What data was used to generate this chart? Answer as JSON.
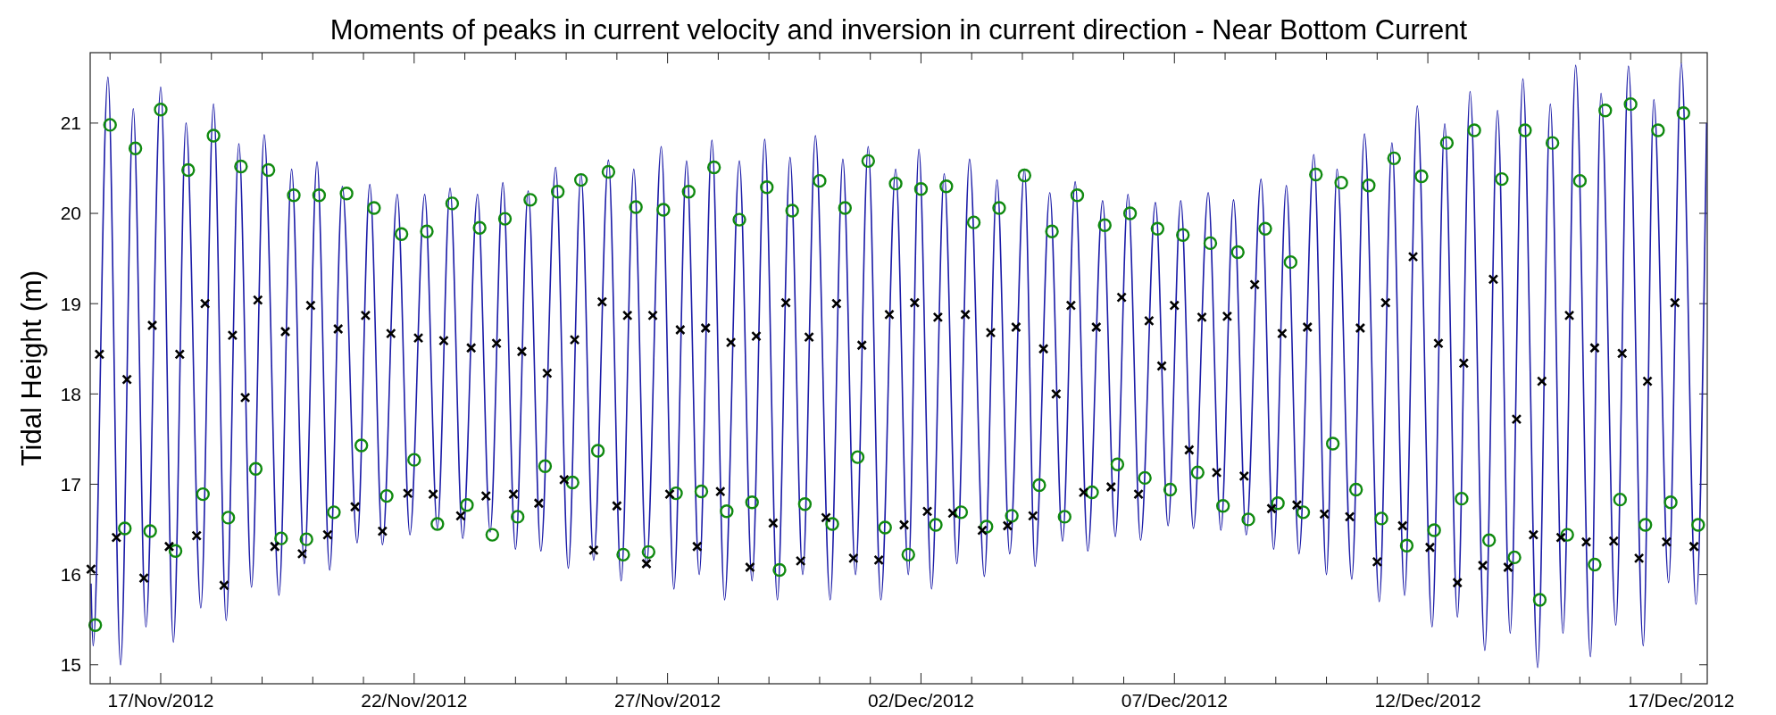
{
  "chart_data": {
    "type": "line",
    "title": "Moments of peaks in current velocity and inversion in current direction - Near Bottom Current",
    "ylabel": "Tidal Height (m)",
    "xlim": [
      "2012-11-15T14:36",
      "2012-12-17T12:18"
    ],
    "ylim": [
      14.79,
      21.78
    ],
    "yticks": [
      15,
      16,
      17,
      18,
      19,
      20,
      21
    ],
    "xticks": [
      {
        "value": "2012-11-16",
        "label": null
      },
      {
        "value": "2012-11-17",
        "label": "17/Nov/2012"
      },
      {
        "value": "2012-11-18",
        "label": null
      },
      {
        "value": "2012-11-19",
        "label": null
      },
      {
        "value": "2012-11-20",
        "label": null
      },
      {
        "value": "2012-11-21",
        "label": null
      },
      {
        "value": "2012-11-22",
        "label": "22/Nov/2012"
      },
      {
        "value": "2012-11-23",
        "label": null
      },
      {
        "value": "2012-11-24",
        "label": null
      },
      {
        "value": "2012-11-25",
        "label": null
      },
      {
        "value": "2012-11-26",
        "label": null
      },
      {
        "value": "2012-11-27",
        "label": "27/Nov/2012"
      },
      {
        "value": "2012-11-28",
        "label": null
      },
      {
        "value": "2012-11-29",
        "label": null
      },
      {
        "value": "2012-11-30",
        "label": null
      },
      {
        "value": "2012-12-01",
        "label": null
      },
      {
        "value": "2012-12-02",
        "label": "02/Dec/2012"
      },
      {
        "value": "2012-12-03",
        "label": null
      },
      {
        "value": "2012-12-04",
        "label": null
      },
      {
        "value": "2012-12-05",
        "label": null
      },
      {
        "value": "2012-12-06",
        "label": null
      },
      {
        "value": "2012-12-07",
        "label": "07/Dec/2012"
      },
      {
        "value": "2012-12-08",
        "label": null
      },
      {
        "value": "2012-12-09",
        "label": null
      },
      {
        "value": "2012-12-10",
        "label": null
      },
      {
        "value": "2012-12-11",
        "label": null
      },
      {
        "value": "2012-12-12",
        "label": "12/Dec/2012"
      },
      {
        "value": "2012-12-13",
        "label": null
      },
      {
        "value": "2012-12-14",
        "label": null
      },
      {
        "value": "2012-12-15",
        "label": null
      },
      {
        "value": "2012-12-16",
        "label": null
      },
      {
        "value": "2012-12-17",
        "label": "17/Dec/2012"
      }
    ],
    "series": [
      {
        "type": "line",
        "color": "#1c1ca8",
        "marker": "none",
        "x": [
          "2012-11-15T15:00",
          "2012-11-15T16:00",
          "2012-11-15T23:00",
          "2012-11-16T05:00",
          "2012-11-16T11:00",
          "2012-11-16T17:00",
          "2012-11-17T00:00",
          "2012-11-17T06:00",
          "2012-11-17T12:00",
          "2012-11-17T19:00",
          "2012-11-18T01:00",
          "2012-11-18T07:00",
          "2012-11-18T13:00",
          "2012-11-18T19:00",
          "2012-11-19T01:00",
          "2012-11-19T08:00",
          "2012-11-19T14:00",
          "2012-11-19T20:00",
          "2012-11-20T02:00",
          "2012-11-20T08:00",
          "2012-11-20T14:00",
          "2012-11-20T21:00",
          "2012-11-21T03:00",
          "2012-11-21T09:00",
          "2012-11-21T16:00",
          "2012-11-21T22:00",
          "2012-11-22T05:00",
          "2012-11-22T11:00",
          "2012-11-22T17:00",
          "2012-11-22T23:00",
          "2012-11-23T06:00",
          "2012-11-23T12:00",
          "2012-11-23T18:00",
          "2012-11-24T00:00",
          "2012-11-24T06:00",
          "2012-11-24T12:00",
          "2012-11-24T19:00",
          "2012-11-25T01:00",
          "2012-11-25T07:00",
          "2012-11-25T13:00",
          "2012-11-25T20:00",
          "2012-11-26T02:00",
          "2012-11-26T08:00",
          "2012-11-26T14:00",
          "2012-11-26T21:00",
          "2012-11-27T03:00",
          "2012-11-27T09:00",
          "2012-11-27T15:00",
          "2012-11-27T21:00",
          "2012-11-28T03:00",
          "2012-11-28T10:00",
          "2012-11-28T16:00",
          "2012-11-28T22:00",
          "2012-11-29T04:00",
          "2012-11-29T10:00",
          "2012-11-29T16:00",
          "2012-11-29T22:00",
          "2012-11-30T05:00",
          "2012-11-30T11:00",
          "2012-11-30T17:00",
          "2012-11-30T23:00",
          "2012-12-01T05:00",
          "2012-12-01T12:00",
          "2012-12-01T18:00",
          "2012-12-01T23:00",
          "2012-12-02T05:00",
          "2012-12-02T11:00",
          "2012-12-02T17:00",
          "2012-12-02T23:00",
          "2012-12-03T06:00",
          "2012-12-03T12:00",
          "2012-12-03T18:00",
          "2012-12-04T01:00",
          "2012-12-04T06:00",
          "2012-12-04T13:00",
          "2012-12-04T19:00",
          "2012-12-05T01:00",
          "2012-12-05T07:00",
          "2012-12-05T14:00",
          "2012-12-05T20:00",
          "2012-12-06T02:00",
          "2012-12-06T08:00",
          "2012-12-06T15:00",
          "2012-12-06T21:00",
          "2012-12-07T03:00",
          "2012-12-07T09:00",
          "2012-12-07T16:00",
          "2012-12-07T22:00",
          "2012-12-08T04:00",
          "2012-12-08T10:00",
          "2012-12-08T17:00",
          "2012-12-08T23:00",
          "2012-12-09T05:00",
          "2012-12-09T11:00",
          "2012-12-09T18:00",
          "2012-12-10T00:00",
          "2012-12-10T05:00",
          "2012-12-10T12:00",
          "2012-12-10T18:00",
          "2012-12-11T01:00",
          "2012-12-11T07:00",
          "2012-12-11T13:00",
          "2012-12-11T19:00",
          "2012-12-12T02:00",
          "2012-12-12T08:00",
          "2012-12-12T14:00",
          "2012-12-12T20:00",
          "2012-12-13T03:00",
          "2012-12-13T09:00",
          "2012-12-13T15:00",
          "2012-12-13T21:00",
          "2012-12-14T04:00",
          "2012-12-14T10:00",
          "2012-12-14T16:00",
          "2012-12-14T22:00",
          "2012-12-15T05:00",
          "2012-12-15T10:00",
          "2012-12-15T17:00",
          "2012-12-15T23:00",
          "2012-12-16T06:00",
          "2012-12-16T11:00",
          "2012-12-16T18:00",
          "2012-12-17T00:00",
          "2012-12-17T07:00",
          "2012-12-17T12:00"
        ],
        "values": [
          15.9,
          15.21,
          21.51,
          15.0,
          21.16,
          15.42,
          21.4,
          15.25,
          21.0,
          15.63,
          21.21,
          15.49,
          20.77,
          15.86,
          20.87,
          15.77,
          20.49,
          16.12,
          20.57,
          16.05,
          20.3,
          16.35,
          20.32,
          16.33,
          20.21,
          16.44,
          20.21,
          16.51,
          20.28,
          16.4,
          20.21,
          16.47,
          20.34,
          16.28,
          20.25,
          16.26,
          20.51,
          16.07,
          20.44,
          16.16,
          20.59,
          15.93,
          20.49,
          16.09,
          20.74,
          15.84,
          20.58,
          16.0,
          20.81,
          15.72,
          20.58,
          15.93,
          20.82,
          15.72,
          20.62,
          16.0,
          20.86,
          15.72,
          20.6,
          16.0,
          20.74,
          15.72,
          20.49,
          16.0,
          20.71,
          15.84,
          20.44,
          16.12,
          20.6,
          15.98,
          20.37,
          16.23,
          20.49,
          16.09,
          20.23,
          16.37,
          20.35,
          16.26,
          20.14,
          16.42,
          20.21,
          16.38,
          20.12,
          16.54,
          20.14,
          16.51,
          20.23,
          16.49,
          20.15,
          16.44,
          20.38,
          16.28,
          20.31,
          16.23,
          20.65,
          16.0,
          20.49,
          15.95,
          20.88,
          15.7,
          20.78,
          15.77,
          21.19,
          15.42,
          20.99,
          15.53,
          21.35,
          15.16,
          21.14,
          15.35,
          21.49,
          14.97,
          21.21,
          15.35,
          21.64,
          15.09,
          21.33,
          15.44,
          21.63,
          15.21,
          21.26,
          15.91,
          21.66,
          15.67,
          21.0
        ]
      },
      {
        "type": "scatter",
        "color": "#108a10",
        "marker": "circle",
        "x": [
          "2012-11-16T00:00",
          "2012-11-16T12:00",
          "2012-11-17T00:00",
          "2012-11-17T13:00",
          "2012-11-18T01:00",
          "2012-11-18T14:00",
          "2012-11-19T03:00",
          "2012-11-19T15:00",
          "2012-11-20T03:00",
          "2012-11-20T16:00",
          "2012-11-21T05:00",
          "2012-11-21T18:00",
          "2012-11-22T06:00",
          "2012-11-22T18:00",
          "2012-11-23T07:00",
          "2012-11-23T19:00",
          "2012-11-15T17:00",
          "2012-11-16T07:00",
          "2012-11-16T19:00",
          "2012-11-17T07:00",
          "2012-11-17T20:00",
          "2012-11-18T08:00",
          "2012-11-18T21:00",
          "2012-11-19T09:00",
          "2012-11-19T21:00",
          "2012-11-20T10:00",
          "2012-11-20T23:00",
          "2012-11-21T11:00",
          "2012-11-22T00:00",
          "2012-11-22T11:00",
          "2012-11-23T01:00",
          "2012-11-23T13:00",
          "2012-11-24T01:00",
          "2012-11-24T07:00",
          "2012-11-24T14:00",
          "2012-11-24T20:00",
          "2012-11-25T03:00",
          "2012-11-25T07:00",
          "2012-11-25T15:00",
          "2012-11-25T20:00",
          "2012-11-26T03:00",
          "2012-11-26T09:00",
          "2012-11-26T15:00",
          "2012-11-26T22:00",
          "2012-11-27T04:00",
          "2012-11-27T10:00",
          "2012-11-27T16:00",
          "2012-11-27T22:00",
          "2012-11-28T04:00",
          "2012-11-28T10:00",
          "2012-11-28T16:00",
          "2012-11-28T23:00",
          "2012-11-29T05:00",
          "2012-11-29T11:00",
          "2012-11-29T17:00",
          "2012-11-30T00:00",
          "2012-11-30T06:00",
          "2012-11-30T12:00",
          "2012-11-30T18:00",
          "2012-11-30T23:00",
          "2012-12-01T07:00",
          "2012-12-01T12:00",
          "2012-12-01T18:00",
          "2012-12-02T00:00",
          "2012-12-02T07:00",
          "2012-12-02T12:00",
          "2012-12-02T19:00",
          "2012-12-03T01:00",
          "2012-12-03T07:00",
          "2012-12-03T13:00",
          "2012-12-03T19:00",
          "2012-12-04T01:00",
          "2012-12-04T08:00",
          "2012-12-04T14:00",
          "2012-12-04T20:00",
          "2012-12-05T02:00",
          "2012-12-05T09:00",
          "2012-12-05T15:00",
          "2012-12-05T21:00",
          "2012-12-06T03:00",
          "2012-12-06T10:00",
          "2012-12-06T16:00",
          "2012-12-06T22:00",
          "2012-12-07T04:00",
          "2012-12-07T11:00",
          "2012-12-07T17:00",
          "2012-12-07T23:00",
          "2012-12-08T06:00",
          "2012-12-08T11:00",
          "2012-12-08T19:00",
          "2012-12-09T01:00",
          "2012-12-09T07:00",
          "2012-12-09T13:00",
          "2012-12-09T19:00",
          "2012-12-10T03:00",
          "2012-12-10T07:00",
          "2012-12-10T14:00",
          "2012-12-10T20:00",
          "2012-12-11T02:00",
          "2012-12-11T08:00",
          "2012-12-11T14:00",
          "2012-12-11T21:00",
          "2012-12-12T03:00",
          "2012-12-12T09:00",
          "2012-12-12T16:00",
          "2012-12-12T22:00",
          "2012-12-13T05:00",
          "2012-12-13T11:00",
          "2012-12-13T17:00",
          "2012-12-13T22:00",
          "2012-12-14T05:00",
          "2012-12-14T11:00",
          "2012-12-14T18:00",
          "2012-12-15T00:00",
          "2012-12-15T07:00",
          "2012-12-15T12:00",
          "2012-12-15T19:00",
          "2012-12-16T00:00",
          "2012-12-16T07:00",
          "2012-12-16T13:00",
          "2012-12-16T19:00",
          "2012-12-17T01:00",
          "2012-12-17T08:00"
        ],
        "values": [
          20.98,
          20.72,
          21.15,
          20.48,
          20.86,
          20.52,
          20.48,
          20.2,
          20.2,
          20.22,
          20.06,
          19.77,
          19.8,
          20.11,
          19.84,
          19.94,
          15.44,
          16.51,
          16.48,
          16.26,
          16.89,
          16.63,
          17.17,
          16.4,
          16.39,
          16.69,
          17.43,
          16.87,
          17.27,
          16.56,
          16.77,
          16.44,
          16.64,
          20.15,
          17.2,
          20.24,
          17.02,
          20.37,
          17.37,
          20.46,
          16.22,
          20.07,
          16.25,
          20.04,
          16.9,
          20.24,
          16.92,
          20.51,
          16.7,
          19.93,
          16.8,
          20.29,
          16.05,
          20.03,
          16.78,
          20.36,
          16.56,
          20.06,
          17.3,
          20.58,
          16.52,
          20.33,
          16.22,
          20.27,
          16.55,
          20.3,
          16.69,
          19.9,
          16.53,
          20.06,
          16.65,
          20.42,
          16.99,
          19.8,
          16.64,
          20.2,
          16.91,
          19.87,
          17.22,
          20.0,
          17.07,
          19.83,
          16.94,
          19.76,
          17.13,
          19.67,
          16.76,
          19.57,
          16.61,
          19.83,
          16.79,
          19.46,
          16.69,
          20.43,
          17.45,
          20.34,
          16.94,
          20.31,
          16.62,
          20.61,
          16.32,
          20.41,
          16.49,
          20.78,
          16.84,
          20.92,
          16.38,
          20.38,
          16.19,
          20.92,
          15.72,
          20.78,
          16.44,
          20.36,
          16.11,
          21.14,
          16.83,
          21.21,
          16.55,
          20.92,
          16.8,
          21.11,
          16.55
        ]
      },
      {
        "type": "scatter",
        "color": "#000000",
        "marker": "cross",
        "x": [
          "2012-11-15T19:00",
          "2012-11-16T08:00",
          "2012-11-16T20:00",
          "2012-11-17T09:00",
          "2012-11-17T21:00",
          "2012-11-18T10:00",
          "2012-11-18T16:00",
          "2012-11-18T22:00",
          "2012-11-19T11:00",
          "2012-11-19T23:00",
          "2012-11-20T12:00",
          "2012-11-21T01:00",
          "2012-11-21T13:00",
          "2012-11-22T02:00",
          "2012-11-22T14:00",
          "2012-11-23T03:00",
          "2012-11-23T15:00",
          "2012-11-15T15:00",
          "2012-11-16T03:00",
          "2012-11-16T16:00",
          "2012-11-17T04:00",
          "2012-11-17T17:00",
          "2012-11-18T06:00",
          "2012-11-19T06:00",
          "2012-11-19T19:00",
          "2012-11-20T07:00",
          "2012-11-20T20:00",
          "2012-11-21T09:00",
          "2012-11-21T21:00",
          "2012-11-22T09:00",
          "2012-11-22T22:00",
          "2012-11-23T10:00",
          "2012-11-23T23:00",
          "2012-11-24T03:00",
          "2012-11-24T11:00",
          "2012-11-24T15:00",
          "2012-11-24T23:00",
          "2012-11-25T04:00",
          "2012-11-25T13:00",
          "2012-11-25T17:00",
          "2012-11-26T00:00",
          "2012-11-26T05:00",
          "2012-11-26T14:00",
          "2012-11-26T17:00",
          "2012-11-27T01:00",
          "2012-11-27T06:00",
          "2012-11-27T14:00",
          "2012-11-27T18:00",
          "2012-11-28T01:00",
          "2012-11-28T06:00",
          "2012-11-28T15:00",
          "2012-11-28T18:00",
          "2012-11-29T02:00",
          "2012-11-29T08:00",
          "2012-11-29T15:00",
          "2012-11-29T19:00",
          "2012-11-30T03:00",
          "2012-11-30T08:00",
          "2012-11-30T16:00",
          "2012-11-30T20:00",
          "2012-12-01T04:00",
          "2012-12-01T09:00",
          "2012-12-01T16:00",
          "2012-12-01T21:00",
          "2012-12-02T03:00",
          "2012-12-02T08:00",
          "2012-12-02T15:00",
          "2012-12-02T21:00",
          "2012-12-03T05:00",
          "2012-12-03T09:00",
          "2012-12-03T17:00",
          "2012-12-03T21:00",
          "2012-12-04T05:00",
          "2012-12-04T10:00",
          "2012-12-04T16:00",
          "2012-12-04T23:00",
          "2012-12-05T05:00",
          "2012-12-05T11:00",
          "2012-12-05T18:00",
          "2012-12-05T23:00",
          "2012-12-06T07:00",
          "2012-12-06T12:00",
          "2012-12-06T18:00",
          "2012-12-07T00:00",
          "2012-12-07T07:00",
          "2012-12-07T13:00",
          "2012-12-07T20:00",
          "2012-12-08T01:00",
          "2012-12-08T09:00",
          "2012-12-08T14:00",
          "2012-12-08T22:00",
          "2012-12-09T03:00",
          "2012-12-09T10:00",
          "2012-12-09T15:00",
          "2012-12-09T23:00",
          "2012-12-10T11:00",
          "2012-12-10T16:00",
          "2012-12-11T00:00",
          "2012-12-11T04:00",
          "2012-12-11T12:00",
          "2012-12-11T17:00",
          "2012-12-12T01:00",
          "2012-12-12T05:00",
          "2012-12-12T14:00",
          "2012-12-12T17:00",
          "2012-12-13T02:00",
          "2012-12-13T07:00",
          "2012-12-13T14:00",
          "2012-12-13T18:00",
          "2012-12-14T02:00",
          "2012-12-14T06:00",
          "2012-12-14T15:00",
          "2012-12-14T19:00",
          "2012-12-15T03:00",
          "2012-12-15T07:00",
          "2012-12-15T16:00",
          "2012-12-15T20:00",
          "2012-12-16T04:00",
          "2012-12-16T08:00",
          "2012-12-16T17:00",
          "2012-12-16T21:00",
          "2012-12-17T06:00"
        ],
        "values": [
          18.44,
          18.16,
          18.76,
          18.44,
          19.0,
          18.65,
          17.96,
          19.04,
          18.69,
          18.98,
          18.72,
          18.87,
          18.67,
          18.62,
          18.59,
          18.51,
          18.56,
          16.06,
          16.41,
          15.96,
          16.31,
          16.43,
          15.88,
          16.31,
          16.23,
          16.44,
          16.75,
          16.48,
          16.9,
          16.89,
          16.65,
          16.87,
          16.89,
          18.47,
          16.79,
          18.23,
          17.05,
          18.6,
          16.27,
          19.02,
          16.76,
          18.87,
          16.12,
          18.87,
          16.89,
          18.71,
          16.31,
          18.73,
          16.92,
          18.57,
          16.08,
          18.64,
          16.57,
          19.01,
          16.15,
          18.63,
          16.63,
          19.0,
          16.18,
          18.54,
          16.16,
          18.88,
          16.55,
          19.01,
          16.7,
          18.85,
          16.68,
          18.88,
          16.49,
          18.68,
          16.54,
          18.74,
          16.65,
          18.5,
          18.0,
          18.98,
          16.91,
          18.74,
          16.97,
          19.07,
          16.89,
          18.81,
          18.31,
          18.98,
          17.38,
          18.85,
          17.13,
          18.86,
          17.09,
          19.21,
          16.73,
          18.67,
          16.77,
          18.74,
          16.67,
          16.64,
          18.73,
          16.14,
          19.01,
          16.54,
          19.52,
          16.3,
          18.56,
          15.91,
          18.34,
          16.1,
          19.27,
          16.08,
          17.72,
          16.44,
          18.14,
          16.41,
          18.87,
          16.36,
          18.51,
          16.37,
          18.45,
          16.18,
          18.14,
          16.36,
          19.01,
          16.31
        ]
      }
    ]
  }
}
